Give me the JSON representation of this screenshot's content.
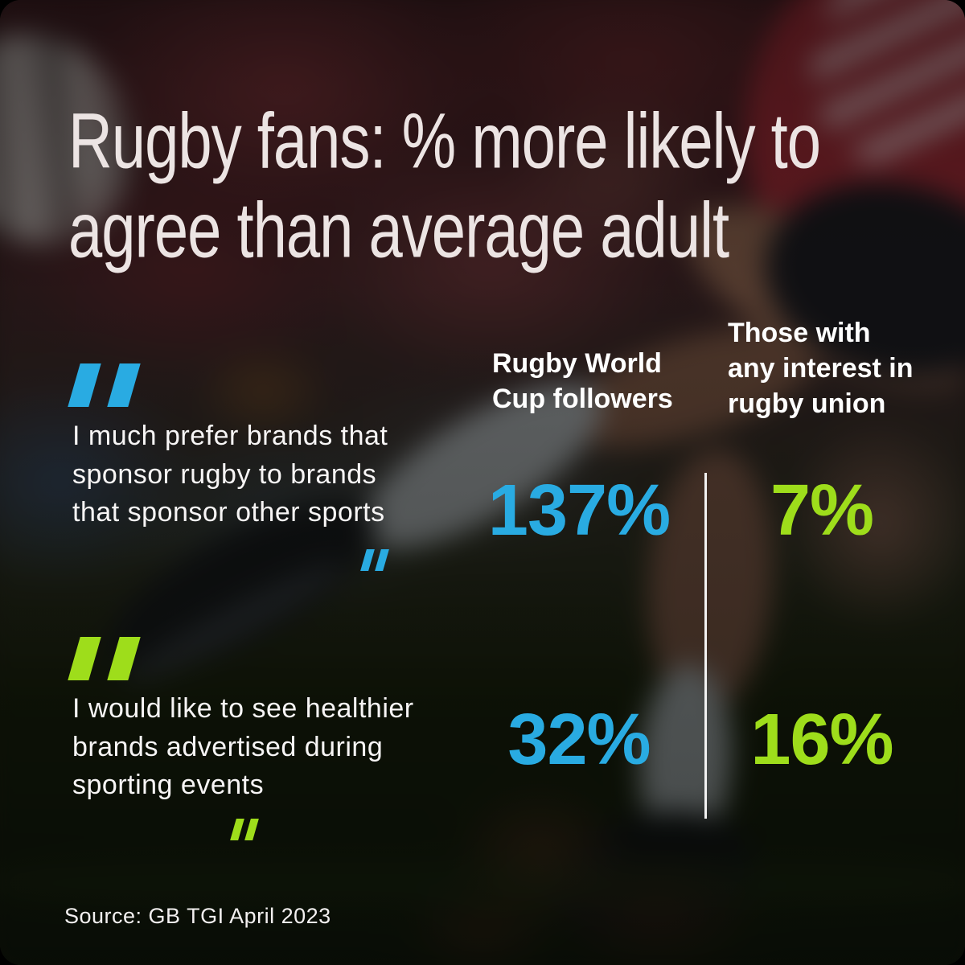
{
  "title": "Rugby fans: % more likely to\nagree than average adult",
  "source": "Source: GB TGI April 2023",
  "colors": {
    "blue": "#29ABE2",
    "green": "#9EDD1B",
    "text": "#FFFFFF"
  },
  "columns": [
    {
      "header": "Rugby World\nCup followers"
    },
    {
      "header": "Those with\nany interest in\nrugby union"
    }
  ],
  "rows": [
    {
      "accent": "blue",
      "quote": "I much prefer brands that\nsponsor rugby to brands\nthat sponsor other sports",
      "values": {
        "rwc": "137%",
        "union": "7%"
      }
    },
    {
      "accent": "green",
      "quote": "I would like to see healthier\nbrands advertised during\nsporting events",
      "values": {
        "rwc": "32%",
        "union": "16%"
      }
    }
  ],
  "chart_data": {
    "type": "table",
    "title": "Rugby fans: % more likely to agree than average adult",
    "categories": [
      "I much prefer brands that sponsor rugby to brands that sponsor other sports",
      "I would like to see healthier brands advertised during sporting events"
    ],
    "series": [
      {
        "name": "Rugby World Cup followers",
        "values": [
          137,
          32
        ]
      },
      {
        "name": "Those with any interest in rugby union",
        "values": [
          7,
          16
        ]
      }
    ],
    "unit": "%",
    "source": "GB TGI April 2023"
  }
}
